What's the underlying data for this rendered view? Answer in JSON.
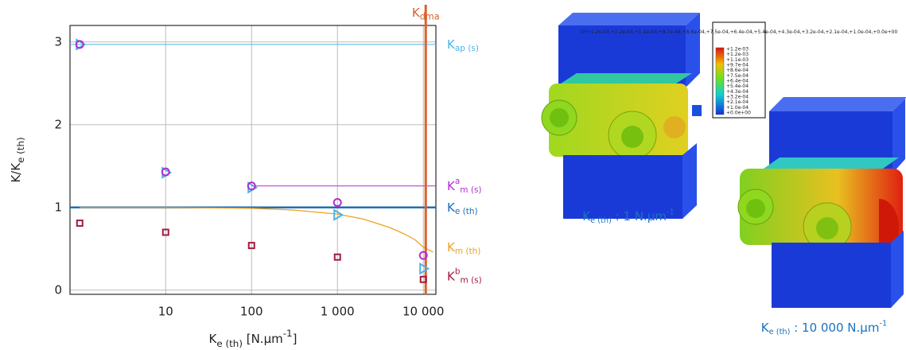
{
  "chart_data": {
    "type": "scatter",
    "xlabel": {
      "text": "K",
      "sub": "e (th)",
      "rest": "  [N.µm",
      "sup": "-1",
      "end": "]"
    },
    "ylabel": {
      "text": "K/K",
      "sub": "e (th)"
    },
    "log_x": true,
    "grid": true,
    "xlim": [
      0.77,
      14000
    ],
    "ylim": [
      -0.05,
      3.2
    ],
    "xticks": [
      10,
      100,
      {
        "value": 1000,
        "label": "1 000"
      },
      {
        "value": 10000,
        "label": "10 000"
      }
    ],
    "yticks": [
      0,
      1,
      2,
      3
    ],
    "series": [
      {
        "marker": "triangle",
        "color": "#4db3e6",
        "x": [
          1,
          10,
          100,
          1000,
          10000
        ],
        "values": [
          2.97,
          1.42,
          1.24,
          0.91,
          0.26
        ]
      },
      {
        "marker": "circle",
        "color": "#b030d0",
        "x": [
          1,
          10,
          100,
          1000,
          10000
        ],
        "values": [
          2.97,
          1.43,
          1.26,
          1.06,
          0.42
        ]
      },
      {
        "marker": "square",
        "color": "#a01c40",
        "x": [
          1,
          10,
          100,
          1000,
          10000
        ],
        "values": [
          0.81,
          0.7,
          0.54,
          0.4,
          0.13
        ],
        "label": {
          "text": "K",
          "sup": "b",
          "sub": "m (s)"
        }
      }
    ],
    "lines": [
      {
        "y": 2.97,
        "from": 0.77,
        "color": "#4db3e6",
        "width": 1,
        "label": {
          "text": "K",
          "sub": "ap (s)"
        }
      },
      {
        "y": 1.26,
        "from": 100,
        "color": "#b030d0",
        "width": 1,
        "label": {
          "text": "K",
          "sup": "a",
          "sub": "m (s)"
        }
      },
      {
        "y": 1,
        "from": 0.77,
        "color": "#1f6fb5",
        "width": 2.5,
        "label": {
          "text": "K",
          "sub": "e (th)"
        }
      }
    ],
    "curve": {
      "color": "#f0a020",
      "x": [
        1,
        10,
        100,
        300,
        1000,
        2000,
        4000,
        6000,
        8000,
        10000,
        13000
      ],
      "values": [
        1,
        1,
        0.99,
        0.97,
        0.92,
        0.86,
        0.76,
        0.68,
        0.61,
        0.52,
        0.46
      ],
      "label": {
        "text": "K",
        "sub": "m (th)"
      }
    },
    "vline": {
      "x": 10660,
      "color": "#d9622b",
      "label": {
        "text": "K",
        "sub": "dma"
      }
    }
  },
  "figure": {
    "colorbar": {
      "title": "U",
      "title_sub": "Y",
      "labels": [
        "+1.2e-03",
        "+1.2e-03",
        "+1.1e-03",
        "+9.7e-04",
        "+8.6e-04",
        "+7.5e-04",
        "+6.4e-04",
        "+5.4e-04",
        "+4.3e-04",
        "+3.2e-04",
        "+2.1e-04",
        "+1.0e-04",
        "+0.0e+00"
      ]
    },
    "captions": [
      {
        "text": "K",
        "sub": "e (th)",
        "rest": " : 1 N.µm",
        "sup": "-1"
      },
      {
        "text": "K",
        "sub": "e (th)",
        "rest": " : 10 000 N.µm",
        "sup": "-1"
      }
    ]
  }
}
